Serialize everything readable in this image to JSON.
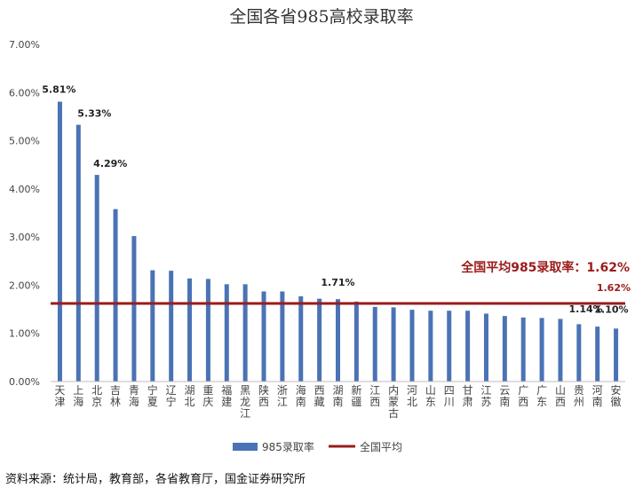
{
  "chart_data": {
    "type": "bar",
    "title": "全国各省985高校录取率",
    "categories": [
      "天津",
      "上海",
      "北京",
      "吉林",
      "青海",
      "宁夏",
      "辽宁",
      "湖北",
      "重庆",
      "福建",
      "黑龙江",
      "陕西",
      "浙江",
      "海南",
      "西藏",
      "湖南",
      "新疆",
      "江西",
      "内蒙古",
      "河北",
      "山东",
      "四川",
      "甘肃",
      "江苏",
      "云南",
      "广西",
      "广东",
      "山西",
      "贵州",
      "河南",
      "安徽"
    ],
    "series": [
      {
        "name": "985录取率",
        "color": "#4a73b5",
        "values": [
          5.81,
          5.33,
          4.29,
          3.58,
          3.02,
          2.31,
          2.3,
          2.14,
          2.13,
          2.02,
          2.02,
          1.87,
          1.87,
          1.77,
          1.72,
          1.71,
          1.66,
          1.55,
          1.54,
          1.49,
          1.47,
          1.47,
          1.47,
          1.41,
          1.36,
          1.33,
          1.32,
          1.3,
          1.19,
          1.14,
          1.1
        ]
      }
    ],
    "reference_line": {
      "name": "全国平均",
      "value": 1.62,
      "color": "#9b1b1b"
    },
    "data_labels": [
      {
        "index": 0,
        "text": "5.81%"
      },
      {
        "index": 1,
        "text": "5.33%"
      },
      {
        "index": 2,
        "text": "4.29%"
      },
      {
        "index": 15,
        "text": "1.71%"
      },
      {
        "index": 29,
        "text": "1.14%"
      },
      {
        "index": 30,
        "text": "1.10%"
      }
    ],
    "annotation": {
      "text": "全国平均985录取率：1.62%",
      "value_text": "1.62%"
    },
    "ylim": [
      0,
      7
    ],
    "y_ticks": [
      "0.00%",
      "1.00%",
      "2.00%",
      "3.00%",
      "4.00%",
      "5.00%",
      "6.00%",
      "7.00%"
    ],
    "grid": false,
    "legend": {
      "position": "bottom",
      "items": [
        "985录取率",
        "全国平均"
      ]
    }
  },
  "source_text": "资料来源：统计局，教育部，各省教育厅，国金证券研究所"
}
